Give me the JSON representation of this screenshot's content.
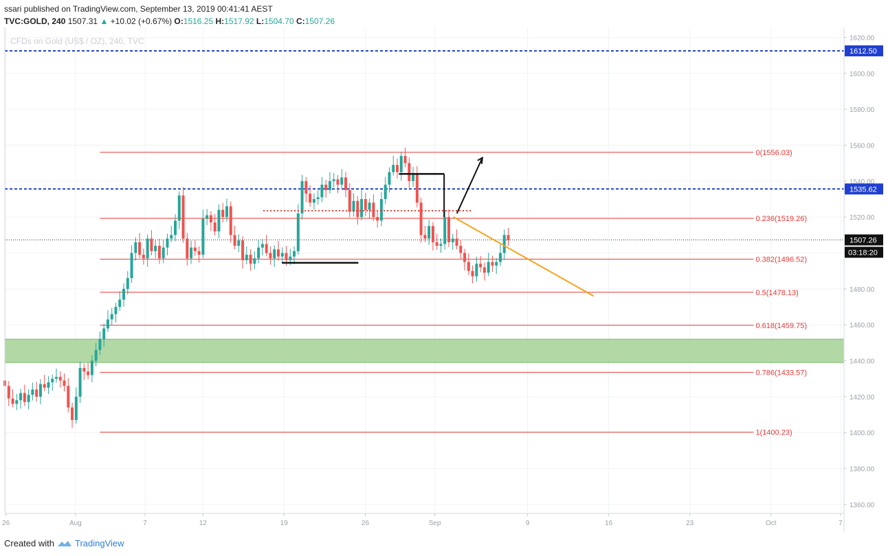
{
  "header": {
    "user": "ssari",
    "published_text": "published on TradingView.com, September 13, 2019 00:41:41 AEST",
    "symbol": "TVC:GOLD, 240",
    "last": "1507.31",
    "change": "+10.02 (+0.67%)",
    "o_label": "O:",
    "o_value": "1516.25",
    "h_label": "H:",
    "h_value": "1517.92",
    "l_label": "L:",
    "l_value": "1504.70",
    "c_label": "C:",
    "c_value": "1507.26"
  },
  "watermark": "CFDs on Gold (US$ / OZ), 240, TVC",
  "footer": {
    "created_with": "Created with",
    "brand": "TradingView"
  },
  "chart_data": {
    "type": "candlestick",
    "title": "CFDs on Gold (US$ / OZ), 240, TVC",
    "y_ticks": [
      1360,
      1380,
      1400,
      1420,
      1440,
      1460,
      1480,
      1500,
      1520,
      1540,
      1560,
      1580,
      1600,
      1620
    ],
    "y_tick_labels": [
      "1360.00",
      "1380.00",
      "1400.00",
      "1420.00",
      "1440.00",
      "1460.00",
      "1480.00",
      "1500.00",
      "1520.00",
      "1540.00",
      "1560.00",
      "1580.00",
      "1600.00",
      "1620.00"
    ],
    "ylim": [
      1355,
      1624
    ],
    "x_ticks": [
      {
        "label": "26",
        "day": -6
      },
      {
        "label": "Aug",
        "day": 0
      },
      {
        "label": "7",
        "day": 6
      },
      {
        "label": "12",
        "day": 11
      },
      {
        "label": "19",
        "day": 18
      },
      {
        "label": "26",
        "day": 25
      },
      {
        "label": "Sep",
        "day": 31
      },
      {
        "label": "9",
        "day": 39
      },
      {
        "label": "16",
        "day": 46
      },
      {
        "label": "23",
        "day": 53
      },
      {
        "label": "Oct",
        "day": 60
      },
      {
        "label": "7",
        "day": 66
      }
    ],
    "xlim_days": [
      -6.1,
      66.3
    ],
    "fib_levels": [
      {
        "label": "0(1556.03)",
        "value": 1556.03
      },
      {
        "label": "0.236(1519.26)",
        "value": 1519.26
      },
      {
        "label": "0.382(1496.52)",
        "value": 1496.52
      },
      {
        "label": "0.5(1478.13)",
        "value": 1478.13
      },
      {
        "label": "0.618(1459.75)",
        "value": 1459.75
      },
      {
        "label": "0.786(1433.57)",
        "value": 1433.57
      },
      {
        "label": "1(1400.23)",
        "value": 1400.23
      }
    ],
    "horizontal_lines": [
      {
        "value": 1612.5,
        "label": "1612.50",
        "color": "#1f3fd0"
      },
      {
        "value": 1535.62,
        "label": "1535.62",
        "color": "#1f3fd0"
      }
    ],
    "current_price": {
      "value": 1507.26,
      "label": "1507.26",
      "countdown": "03:18:20"
    },
    "support_zone": [
      1439,
      1452
    ],
    "closes": [
      1426,
      1419,
      1416,
      1418,
      1422,
      1417,
      1421,
      1424,
      1420,
      1427,
      1425,
      1428,
      1430,
      1431,
      1429,
      1426,
      1414,
      1407,
      1420,
      1436,
      1434,
      1432,
      1440,
      1446,
      1452,
      1458,
      1463,
      1466,
      1470,
      1474,
      1480,
      1486,
      1500,
      1506,
      1499,
      1497,
      1508,
      1501,
      1504,
      1497,
      1503,
      1508,
      1510,
      1518,
      1532,
      1508,
      1497,
      1503,
      1501,
      1499,
      1519,
      1521,
      1517,
      1512,
      1524,
      1520,
      1526,
      1510,
      1504,
      1507,
      1496,
      1499,
      1494,
      1497,
      1503,
      1505,
      1500,
      1497,
      1502,
      1498,
      1500,
      1496,
      1498,
      1501,
      1522,
      1540,
      1533,
      1528,
      1530,
      1531,
      1538,
      1535,
      1540,
      1541,
      1538,
      1542,
      1535,
      1523,
      1529,
      1520,
      1530,
      1524,
      1528,
      1520,
      1518,
      1530,
      1538,
      1545,
      1549,
      1545,
      1554,
      1550,
      1540,
      1544,
      1528,
      1510,
      1508,
      1515,
      1506,
      1504,
      1505,
      1520,
      1506,
      1508,
      1504,
      1500,
      1495,
      1490,
      1487,
      1494,
      1492,
      1489,
      1495,
      1493,
      1495,
      1500,
      1510,
      1507
    ]
  }
}
